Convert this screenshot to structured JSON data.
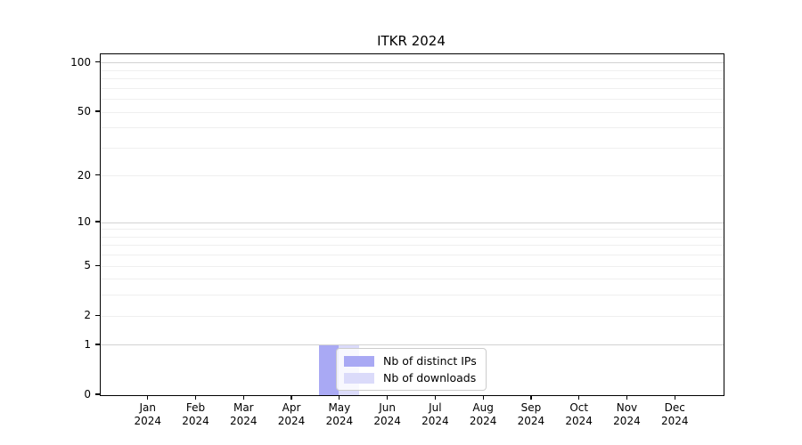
{
  "figure": {
    "title": "ITKR 2024"
  },
  "legend": {
    "items": [
      {
        "label": "Nb of distinct IPs",
        "color": "#a9a9f4"
      },
      {
        "label": "Nb of downloads",
        "color": "#dbdbfa"
      }
    ]
  },
  "chart_data": {
    "type": "bar",
    "title": "ITKR 2024",
    "categories": [
      "Jan 2024",
      "Feb 2024",
      "Mar 2024",
      "Apr 2024",
      "May 2024",
      "Jun 2024",
      "Jul 2024",
      "Aug 2024",
      "Sep 2024",
      "Oct 2024",
      "Nov 2024",
      "Dec 2024"
    ],
    "series": [
      {
        "name": "Nb of distinct IPs",
        "color": "#a9a9f4",
        "values": [
          0,
          0,
          0,
          0,
          1,
          0,
          0,
          0,
          0,
          0,
          0,
          0
        ]
      },
      {
        "name": "Nb of downloads",
        "color": "#dbdbfa",
        "values": [
          0,
          0,
          0,
          0,
          1,
          0,
          0,
          0,
          0,
          0,
          0,
          0
        ]
      }
    ],
    "xlabel": "",
    "ylabel": "",
    "yscale": "log1p",
    "yticks": [
      0,
      1,
      2,
      5,
      10,
      20,
      50,
      100
    ],
    "grid_major": [
      1,
      10,
      100
    ],
    "grid_minor": [
      2,
      3,
      4,
      5,
      6,
      7,
      8,
      9,
      20,
      30,
      40,
      50,
      60,
      70,
      80,
      90
    ],
    "ylim": [
      0,
      113
    ],
    "grid": "horizontal",
    "legend_position": "lower-center-inside"
  }
}
